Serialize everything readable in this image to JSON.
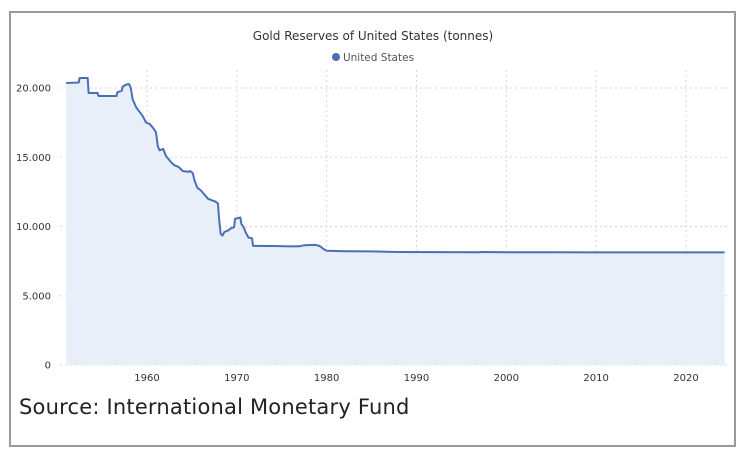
{
  "chart_data": {
    "type": "area",
    "title": "Gold Reserves of United States (tonnes)",
    "xlabel": "",
    "ylabel": "",
    "legend": {
      "position": "top-center",
      "entries": [
        "United States"
      ]
    },
    "series": [
      {
        "name": "United States",
        "color": "#4a6fb5",
        "fill": "#e9eff8",
        "step": true,
        "points": [
          [
            1951.0,
            20360
          ],
          [
            1952.4,
            20400
          ],
          [
            1952.5,
            20720
          ],
          [
            1953.4,
            20720
          ],
          [
            1953.5,
            19640
          ],
          [
            1954.5,
            19640
          ],
          [
            1954.6,
            19420
          ],
          [
            1956.6,
            19420
          ],
          [
            1956.7,
            19700
          ],
          [
            1957.2,
            19800
          ],
          [
            1957.3,
            20100
          ],
          [
            1957.7,
            20250
          ],
          [
            1958.0,
            20280
          ],
          [
            1958.2,
            20000
          ],
          [
            1958.4,
            19200
          ],
          [
            1958.8,
            18600
          ],
          [
            1959.2,
            18250
          ],
          [
            1959.5,
            18000
          ],
          [
            1959.9,
            17500
          ],
          [
            1960.3,
            17400
          ],
          [
            1960.7,
            17100
          ],
          [
            1961.0,
            16800
          ],
          [
            1961.2,
            15800
          ],
          [
            1961.4,
            15500
          ],
          [
            1961.8,
            15600
          ],
          [
            1962.1,
            15100
          ],
          [
            1962.6,
            14700
          ],
          [
            1963.0,
            14450
          ],
          [
            1963.5,
            14300
          ],
          [
            1964.0,
            14000
          ],
          [
            1964.6,
            13950
          ],
          [
            1964.8,
            14000
          ],
          [
            1965.1,
            13850
          ],
          [
            1965.3,
            13300
          ],
          [
            1965.6,
            12800
          ],
          [
            1966.0,
            12600
          ],
          [
            1966.4,
            12300
          ],
          [
            1966.8,
            12000
          ],
          [
            1967.2,
            11900
          ],
          [
            1967.6,
            11800
          ],
          [
            1967.9,
            11650
          ],
          [
            1968.0,
            10700
          ],
          [
            1968.2,
            9450
          ],
          [
            1968.4,
            9350
          ],
          [
            1968.6,
            9600
          ],
          [
            1969.0,
            9700
          ],
          [
            1969.3,
            9850
          ],
          [
            1969.7,
            9950
          ],
          [
            1969.8,
            10550
          ],
          [
            1970.4,
            10650
          ],
          [
            1970.5,
            10200
          ],
          [
            1970.8,
            9900
          ],
          [
            1971.0,
            9550
          ],
          [
            1971.3,
            9200
          ],
          [
            1971.7,
            9150
          ],
          [
            1971.8,
            8600
          ],
          [
            1974.0,
            8590
          ],
          [
            1976.0,
            8560
          ],
          [
            1977.0,
            8570
          ],
          [
            1977.5,
            8650
          ],
          [
            1978.7,
            8670
          ],
          [
            1979.2,
            8600
          ],
          [
            1979.6,
            8400
          ],
          [
            1980.0,
            8250
          ],
          [
            1982.0,
            8220
          ],
          [
            1985.0,
            8200
          ],
          [
            1988.0,
            8160
          ],
          [
            1992.0,
            8150
          ],
          [
            1997.0,
            8140
          ],
          [
            1997.3,
            8160
          ],
          [
            2000.0,
            8140
          ],
          [
            2005.0,
            8135
          ],
          [
            2010.0,
            8133
          ],
          [
            2015.0,
            8133
          ],
          [
            2020.0,
            8133
          ],
          [
            2024.3,
            8133
          ]
        ]
      }
    ],
    "x_range": [
      1950,
      2025
    ],
    "y_range": [
      0,
      20000
    ],
    "x_ticks": [
      "1960",
      "1970",
      "1980",
      "1990",
      "2000",
      "2010",
      "2020"
    ],
    "x_tick_values": [
      1960,
      1970,
      1980,
      1990,
      2000,
      2010,
      2020
    ],
    "y_ticks": [
      "0",
      "5.000",
      "10.000",
      "15.000",
      "20.000"
    ],
    "y_tick_values": [
      0,
      5000,
      10000,
      15000,
      20000
    ],
    "grid": true
  },
  "source": "Source: International Monetary Fund"
}
